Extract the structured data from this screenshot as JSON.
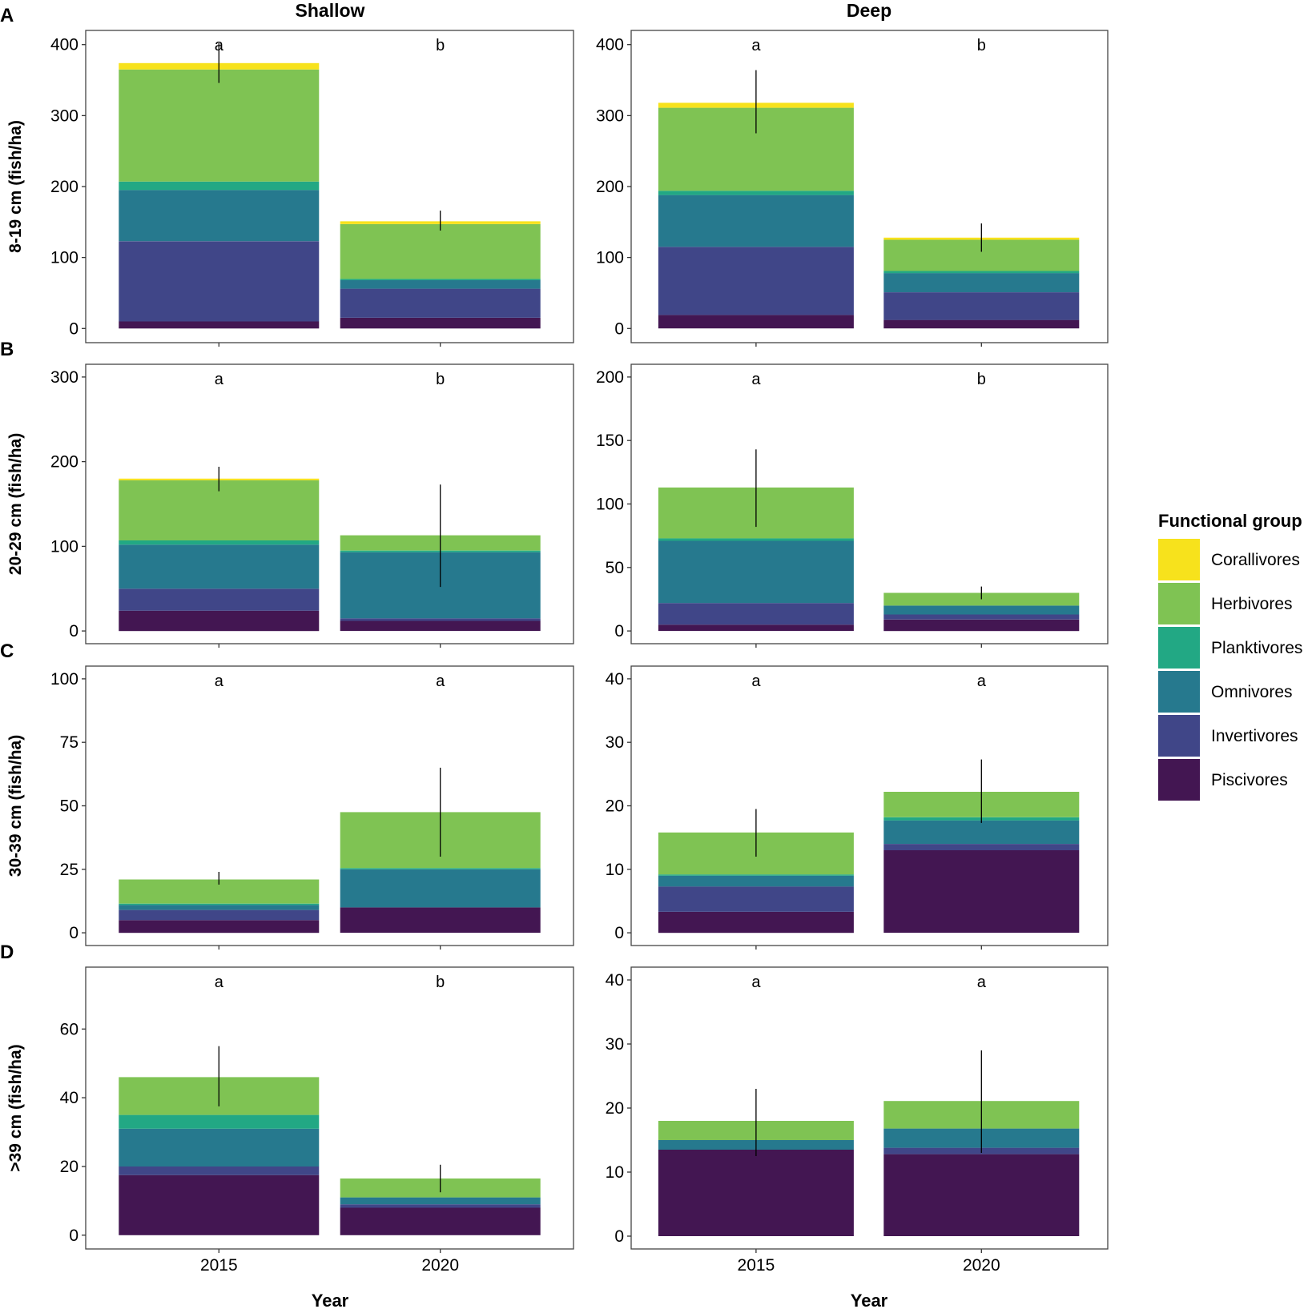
{
  "figure": {
    "column_titles": [
      "Shallow",
      "Deep"
    ],
    "x_axis_title": "Year",
    "legend": {
      "title": "Functional group",
      "items": [
        {
          "label": "Corallivores",
          "color": "#f7e21c"
        },
        {
          "label": "Herbivores",
          "color": "#7fc353"
        },
        {
          "label": "Planktivores",
          "color": "#22a884"
        },
        {
          "label": "Omnivores",
          "color": "#26798e"
        },
        {
          "label": "Invertivores",
          "color": "#404688"
        },
        {
          "label": "Piscivores",
          "color": "#431652"
        }
      ]
    }
  },
  "chart_data": [
    {
      "type": "bar",
      "stacked": true,
      "row": 0,
      "col": 0,
      "panel_letter": "A",
      "ylabel": "8-19 cm (fish/ha)",
      "column_title": "Shallow",
      "categories": [
        "2015",
        "2020"
      ],
      "ylim": [
        -20,
        420
      ],
      "yticks": [
        0,
        100,
        200,
        300,
        400
      ],
      "significance_letters": [
        "a",
        "b"
      ],
      "series": [
        {
          "name": "Piscivores",
          "values": [
            10,
            15
          ]
        },
        {
          "name": "Invertivores",
          "values": [
            113,
            41
          ]
        },
        {
          "name": "Omnivores",
          "values": [
            72,
            12
          ]
        },
        {
          "name": "Planktivores",
          "values": [
            12,
            2
          ]
        },
        {
          "name": "Herbivores",
          "values": [
            158,
            77
          ]
        },
        {
          "name": "Corallivores",
          "values": [
            9,
            4
          ]
        }
      ],
      "error_bars": [
        [
          346,
          402
        ],
        [
          138,
          166
        ]
      ]
    },
    {
      "type": "bar",
      "stacked": true,
      "row": 0,
      "col": 1,
      "panel_letter": "",
      "ylabel": "",
      "column_title": "Deep",
      "categories": [
        "2015",
        "2020"
      ],
      "ylim": [
        -20,
        420
      ],
      "yticks": [
        0,
        100,
        200,
        300,
        400
      ],
      "significance_letters": [
        "a",
        "b"
      ],
      "series": [
        {
          "name": "Piscivores",
          "values": [
            19,
            12
          ]
        },
        {
          "name": "Invertivores",
          "values": [
            96,
            39
          ]
        },
        {
          "name": "Omnivores",
          "values": [
            73,
            27
          ]
        },
        {
          "name": "Planktivores",
          "values": [
            6,
            3
          ]
        },
        {
          "name": "Herbivores",
          "values": [
            117,
            44
          ]
        },
        {
          "name": "Corallivores",
          "values": [
            7,
            3
          ]
        }
      ],
      "error_bars": [
        [
          275,
          364
        ],
        [
          108,
          148
        ]
      ]
    },
    {
      "type": "bar",
      "stacked": true,
      "row": 1,
      "col": 0,
      "panel_letter": "B",
      "ylabel": "20-29 cm (fish/ha)",
      "column_title": "Shallow",
      "categories": [
        "2015",
        "2020"
      ],
      "ylim": [
        -15,
        315
      ],
      "yticks": [
        0,
        100,
        200,
        300
      ],
      "significance_letters": [
        "a",
        "b"
      ],
      "series": [
        {
          "name": "Piscivores",
          "values": [
            24,
            12
          ]
        },
        {
          "name": "Invertivores",
          "values": [
            26,
            3
          ]
        },
        {
          "name": "Omnivores",
          "values": [
            52,
            78
          ]
        },
        {
          "name": "Planktivores",
          "values": [
            5,
            2
          ]
        },
        {
          "name": "Herbivores",
          "values": [
            71,
            18
          ]
        },
        {
          "name": "Corallivores",
          "values": [
            2,
            0
          ]
        }
      ],
      "error_bars": [
        [
          165,
          194
        ],
        [
          52,
          173
        ]
      ]
    },
    {
      "type": "bar",
      "stacked": true,
      "row": 1,
      "col": 1,
      "panel_letter": "",
      "ylabel": "",
      "column_title": "Deep",
      "categories": [
        "2015",
        "2020"
      ],
      "ylim": [
        -10,
        210
      ],
      "yticks": [
        0,
        50,
        100,
        150,
        200
      ],
      "significance_letters": [
        "a",
        "b"
      ],
      "series": [
        {
          "name": "Piscivores",
          "values": [
            5,
            9
          ]
        },
        {
          "name": "Invertivores",
          "values": [
            17,
            4
          ]
        },
        {
          "name": "Omnivores",
          "values": [
            49,
            7
          ]
        },
        {
          "name": "Planktivores",
          "values": [
            2,
            0
          ]
        },
        {
          "name": "Herbivores",
          "values": [
            40,
            10
          ]
        },
        {
          "name": "Corallivores",
          "values": [
            0,
            0
          ]
        }
      ],
      "error_bars": [
        [
          82,
          143
        ],
        [
          25,
          35
        ]
      ]
    },
    {
      "type": "bar",
      "stacked": true,
      "row": 2,
      "col": 0,
      "panel_letter": "C",
      "ylabel": "30-39 cm (fish/ha)",
      "column_title": "Shallow",
      "categories": [
        "2015",
        "2020"
      ],
      "ylim": [
        -5,
        105
      ],
      "yticks": [
        0,
        25,
        50,
        75,
        100
      ],
      "significance_letters": [
        "a",
        "a"
      ],
      "series": [
        {
          "name": "Piscivores",
          "values": [
            5,
            10
          ]
        },
        {
          "name": "Invertivores",
          "values": [
            4,
            0
          ]
        },
        {
          "name": "Omnivores",
          "values": [
            2,
            15
          ]
        },
        {
          "name": "Planktivores",
          "values": [
            0.5,
            0.5
          ]
        },
        {
          "name": "Herbivores",
          "values": [
            9.5,
            22
          ]
        },
        {
          "name": "Corallivores",
          "values": [
            0,
            0
          ]
        }
      ],
      "error_bars": [
        [
          19,
          24
        ],
        [
          30,
          65
        ]
      ]
    },
    {
      "type": "bar",
      "stacked": true,
      "row": 2,
      "col": 1,
      "panel_letter": "",
      "ylabel": "",
      "column_title": "Deep",
      "categories": [
        "2015",
        "2020"
      ],
      "ylim": [
        -2,
        42
      ],
      "yticks": [
        0,
        10,
        20,
        30,
        40
      ],
      "significance_letters": [
        "a",
        "a"
      ],
      "series": [
        {
          "name": "Piscivores",
          "values": [
            3.3,
            13
          ]
        },
        {
          "name": "Invertivores",
          "values": [
            4,
            1
          ]
        },
        {
          "name": "Omnivores",
          "values": [
            1.7,
            3.7
          ]
        },
        {
          "name": "Planktivores",
          "values": [
            0.2,
            0.5
          ]
        },
        {
          "name": "Herbivores",
          "values": [
            6.6,
            4
          ]
        },
        {
          "name": "Corallivores",
          "values": [
            0,
            0
          ]
        }
      ],
      "error_bars": [
        [
          12,
          19.5
        ],
        [
          17.3,
          27.3
        ]
      ]
    },
    {
      "type": "bar",
      "stacked": true,
      "row": 3,
      "col": 0,
      "panel_letter": "D",
      "ylabel": ">39 cm (fish/ha)",
      "column_title": "Shallow",
      "categories": [
        "2015",
        "2020"
      ],
      "ylim": [
        -4,
        78
      ],
      "yticks": [
        0,
        20,
        40,
        60
      ],
      "significance_letters": [
        "a",
        "b"
      ],
      "series": [
        {
          "name": "Piscivores",
          "values": [
            17.5,
            8
          ]
        },
        {
          "name": "Invertivores",
          "values": [
            2.5,
            1
          ]
        },
        {
          "name": "Omnivores",
          "values": [
            11,
            2
          ]
        },
        {
          "name": "Planktivores",
          "values": [
            4,
            0
          ]
        },
        {
          "name": "Herbivores",
          "values": [
            11,
            5.5
          ]
        },
        {
          "name": "Corallivores",
          "values": [
            0,
            0
          ]
        }
      ],
      "error_bars": [
        [
          37.5,
          55
        ],
        [
          12.5,
          20.5
        ]
      ]
    },
    {
      "type": "bar",
      "stacked": true,
      "row": 3,
      "col": 1,
      "panel_letter": "",
      "ylabel": "",
      "column_title": "Deep",
      "categories": [
        "2015",
        "2020"
      ],
      "ylim": [
        -2,
        42
      ],
      "yticks": [
        0,
        10,
        20,
        30,
        40
      ],
      "significance_letters": [
        "a",
        "a"
      ],
      "series": [
        {
          "name": "Piscivores",
          "values": [
            13.5,
            12.8
          ]
        },
        {
          "name": "Invertivores",
          "values": [
            0,
            1
          ]
        },
        {
          "name": "Omnivores",
          "values": [
            1.5,
            3
          ]
        },
        {
          "name": "Planktivores",
          "values": [
            0,
            0
          ]
        },
        {
          "name": "Herbivores",
          "values": [
            3,
            4.3
          ]
        },
        {
          "name": "Corallivores",
          "values": [
            0,
            0
          ]
        }
      ],
      "error_bars": [
        [
          12.5,
          23
        ],
        [
          13,
          29
        ]
      ]
    }
  ]
}
